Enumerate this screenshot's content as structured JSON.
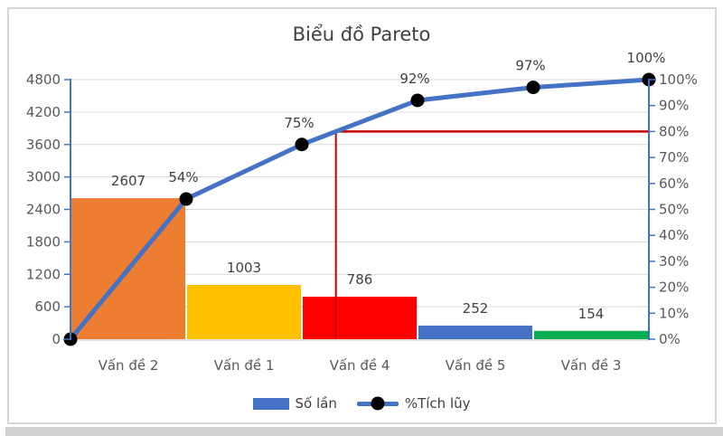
{
  "title": "Biểu đồ Pareto",
  "colors": {
    "axis_line": "#4472C4",
    "gridline": "#D9D9D9",
    "x_axis_line": "#D9D9D9",
    "cumulative_line": "#4472C4",
    "marker": "#000000",
    "cutoff_line": "#C00000",
    "title_text": "#404040",
    "label_text": "#404040",
    "axis_text": "#595959",
    "chart_border": "#D7D7D7",
    "bottom_strip": "#D2D2D2",
    "legend_swatch": "#4472C4"
  },
  "chart_data": {
    "type": "pareto (bar + cumulative line)",
    "title": "Biểu đồ Pareto",
    "categories": [
      "Vấn đề 2",
      "Vấn đề 1",
      "Vấn đề 4",
      "Vấn đề 5",
      "Vấn đề 3"
    ],
    "bar_series": {
      "name": "Số lần",
      "values": [
        2607,
        1003,
        786,
        252,
        154
      ],
      "data_labels": [
        "2607",
        "1003",
        "786",
        "252",
        "154"
      ],
      "colors": [
        "#ED7D31",
        "#FFC000",
        "#FF0000",
        "#4472C4",
        "#00B050"
      ]
    },
    "line_series": {
      "name": "%Tích lũy",
      "cumulative_pct": [
        0,
        54,
        75,
        92,
        97,
        100
      ],
      "data_labels": [
        "",
        "54%",
        "75%",
        "92%",
        "97%",
        "100%"
      ]
    },
    "left_axis": {
      "min": 0,
      "max": 4800,
      "step": 600,
      "tick_labels": [
        "0",
        "600",
        "1200",
        "1800",
        "2400",
        "3000",
        "3600",
        "4200",
        "4800"
      ]
    },
    "right_axis": {
      "min": 0,
      "max": 100,
      "step": 10,
      "tick_labels": [
        "0%",
        "10%",
        "20%",
        "30%",
        "40%",
        "50%",
        "60%",
        "70%",
        "80%",
        "90%",
        "100%"
      ]
    },
    "cutoff_pct": 80,
    "gridlines": true,
    "legend_position": "bottom"
  },
  "legend": {
    "items": [
      {
        "label": "Số lần",
        "swatch": "bar"
      },
      {
        "label": "%Tích lũy",
        "swatch": "line-marker"
      }
    ]
  }
}
